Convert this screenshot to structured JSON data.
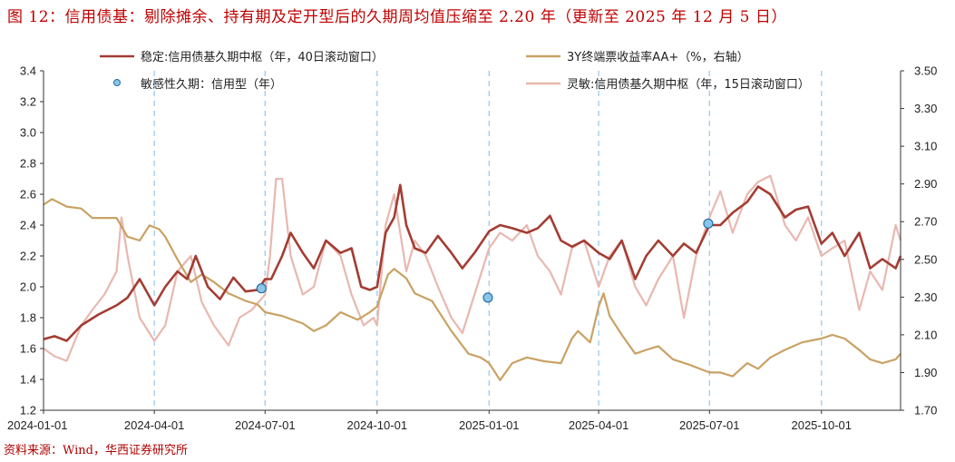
{
  "header": {
    "title": "图 12：信用债基：剔除摊余、持有期及定开型后的久期周均值压缩至 2.20 年（更新至 2025 年 12 月 5 日）"
  },
  "footer": {
    "source": "资料来源：Wind，华西证券研究所"
  },
  "chart_data": {
    "type": "line",
    "title": "",
    "x_ticks": [
      "2024-01-01",
      "2024-04-01",
      "2024-07-01",
      "2024-10-01",
      "2025-01-01",
      "2025-04-01",
      "2025-07-01",
      "2025-10-01"
    ],
    "x_range": [
      "2024-01-01",
      "2025-12-05"
    ],
    "y_left": {
      "min": 1.2,
      "max": 3.4,
      "ticks": [
        "1.2",
        "1.4",
        "1.6",
        "1.8",
        "2.0",
        "2.2",
        "2.4",
        "2.6",
        "2.8",
        "3.0",
        "3.2",
        "3.4"
      ]
    },
    "y_right": {
      "min": 1.7,
      "max": 3.5,
      "ticks": [
        "1.70",
        "1.90",
        "2.10",
        "2.30",
        "2.50",
        "2.70",
        "2.90",
        "3.10",
        "3.30",
        "3.50"
      ]
    },
    "vertical_markers": [
      "2024-04-01",
      "2024-07-01",
      "2024-10-01",
      "2025-01-01",
      "2025-04-01",
      "2025-07-01",
      "2025-10-01"
    ],
    "legend": {
      "stable": "稳定:信用债基久期中枢（年，40日滚动窗口）",
      "yield": "3Y终端票收益率AA+（%，右轴）",
      "points": "敏感性久期：信用型（年）",
      "flexible": "灵敏:信用债基久期中枢（年，15日滚动窗口）"
    },
    "series": [
      {
        "key": "stable",
        "axis": "left",
        "color": "#a33d33",
        "points": [
          [
            "2024-01-01",
            1.66
          ],
          [
            "2024-01-10",
            1.68
          ],
          [
            "2024-01-20",
            1.65
          ],
          [
            "2024-02-01",
            1.75
          ],
          [
            "2024-02-15",
            1.82
          ],
          [
            "2024-03-01",
            1.88
          ],
          [
            "2024-03-10",
            1.93
          ],
          [
            "2024-03-20",
            2.05
          ],
          [
            "2024-04-01",
            1.88
          ],
          [
            "2024-04-10",
            2.0
          ],
          [
            "2024-04-20",
            2.1
          ],
          [
            "2024-04-28",
            2.05
          ],
          [
            "2024-05-05",
            2.2
          ],
          [
            "2024-05-15",
            2.0
          ],
          [
            "2024-05-25",
            1.92
          ],
          [
            "2024-06-05",
            2.06
          ],
          [
            "2024-06-15",
            1.97
          ],
          [
            "2024-06-25",
            1.98
          ],
          [
            "2024-07-01",
            2.05
          ],
          [
            "2024-07-06",
            2.05
          ],
          [
            "2024-07-15",
            2.2
          ],
          [
            "2024-07-22",
            2.35
          ],
          [
            "2024-08-01",
            2.22
          ],
          [
            "2024-08-10",
            2.12
          ],
          [
            "2024-08-20",
            2.3
          ],
          [
            "2024-09-01",
            2.22
          ],
          [
            "2024-09-10",
            2.25
          ],
          [
            "2024-09-18",
            2.0
          ],
          [
            "2024-09-25",
            1.98
          ],
          [
            "2024-10-01",
            2.0
          ],
          [
            "2024-10-08",
            2.35
          ],
          [
            "2024-10-15",
            2.45
          ],
          [
            "2024-10-20",
            2.66
          ],
          [
            "2024-10-25",
            2.4
          ],
          [
            "2024-11-01",
            2.25
          ],
          [
            "2024-11-10",
            2.22
          ],
          [
            "2024-11-20",
            2.33
          ],
          [
            "2024-12-01",
            2.22
          ],
          [
            "2024-12-10",
            2.12
          ],
          [
            "2024-12-20",
            2.22
          ],
          [
            "2025-01-01",
            2.36
          ],
          [
            "2025-01-10",
            2.4
          ],
          [
            "2025-01-20",
            2.38
          ],
          [
            "2025-02-01",
            2.35
          ],
          [
            "2025-02-10",
            2.38
          ],
          [
            "2025-02-20",
            2.46
          ],
          [
            "2025-03-01",
            2.3
          ],
          [
            "2025-03-10",
            2.26
          ],
          [
            "2025-03-20",
            2.3
          ],
          [
            "2025-04-01",
            2.22
          ],
          [
            "2025-04-10",
            2.18
          ],
          [
            "2025-04-20",
            2.3
          ],
          [
            "2025-05-01",
            2.05
          ],
          [
            "2025-05-10",
            2.2
          ],
          [
            "2025-05-20",
            2.3
          ],
          [
            "2025-06-01",
            2.2
          ],
          [
            "2025-06-10",
            2.28
          ],
          [
            "2025-06-20",
            2.22
          ],
          [
            "2025-07-01",
            2.4
          ],
          [
            "2025-07-10",
            2.4
          ],
          [
            "2025-07-20",
            2.48
          ],
          [
            "2025-08-01",
            2.55
          ],
          [
            "2025-08-10",
            2.65
          ],
          [
            "2025-08-20",
            2.6
          ],
          [
            "2025-09-01",
            2.45
          ],
          [
            "2025-09-10",
            2.5
          ],
          [
            "2025-09-20",
            2.52
          ],
          [
            "2025-10-01",
            2.28
          ],
          [
            "2025-10-10",
            2.35
          ],
          [
            "2025-10-20",
            2.2
          ],
          [
            "2025-11-01",
            2.35
          ],
          [
            "2025-11-10",
            2.12
          ],
          [
            "2025-11-20",
            2.18
          ],
          [
            "2025-12-01",
            2.12
          ],
          [
            "2025-12-05",
            2.2
          ]
        ]
      },
      {
        "key": "yield",
        "axis": "right",
        "color": "#c9a264",
        "points": [
          [
            "2024-01-01",
            2.79
          ],
          [
            "2024-01-08",
            2.82
          ],
          [
            "2024-01-20",
            2.78
          ],
          [
            "2024-02-01",
            2.77
          ],
          [
            "2024-02-10",
            2.72
          ],
          [
            "2024-02-20",
            2.72
          ],
          [
            "2024-03-01",
            2.72
          ],
          [
            "2024-03-10",
            2.62
          ],
          [
            "2024-03-20",
            2.6
          ],
          [
            "2024-03-28",
            2.68
          ],
          [
            "2024-04-05",
            2.66
          ],
          [
            "2024-04-10",
            2.62
          ],
          [
            "2024-04-20",
            2.5
          ],
          [
            "2024-05-01",
            2.38
          ],
          [
            "2024-05-10",
            2.42
          ],
          [
            "2024-05-20",
            2.38
          ],
          [
            "2024-06-01",
            2.32
          ],
          [
            "2024-06-15",
            2.28
          ],
          [
            "2024-06-25",
            2.26
          ],
          [
            "2024-07-01",
            2.22
          ],
          [
            "2024-07-15",
            2.2
          ],
          [
            "2024-08-01",
            2.16
          ],
          [
            "2024-08-10",
            2.12
          ],
          [
            "2024-08-20",
            2.15
          ],
          [
            "2024-09-01",
            2.22
          ],
          [
            "2024-09-15",
            2.18
          ],
          [
            "2024-09-25",
            2.22
          ],
          [
            "2024-10-01",
            2.25
          ],
          [
            "2024-10-10",
            2.42
          ],
          [
            "2024-10-15",
            2.45
          ],
          [
            "2024-10-25",
            2.4
          ],
          [
            "2024-11-01",
            2.32
          ],
          [
            "2024-11-15",
            2.28
          ],
          [
            "2024-12-01",
            2.12
          ],
          [
            "2024-12-15",
            2.0
          ],
          [
            "2024-12-25",
            1.98
          ],
          [
            "2025-01-01",
            1.95
          ],
          [
            "2025-01-10",
            1.86
          ],
          [
            "2025-01-20",
            1.95
          ],
          [
            "2025-02-01",
            1.98
          ],
          [
            "2025-02-15",
            1.96
          ],
          [
            "2025-03-01",
            1.95
          ],
          [
            "2025-03-10",
            2.08
          ],
          [
            "2025-03-15",
            2.12
          ],
          [
            "2025-03-25",
            2.06
          ],
          [
            "2025-04-01",
            2.25
          ],
          [
            "2025-04-05",
            2.32
          ],
          [
            "2025-04-10",
            2.2
          ],
          [
            "2025-04-20",
            2.1
          ],
          [
            "2025-05-01",
            2.0
          ],
          [
            "2025-05-10",
            2.02
          ],
          [
            "2025-05-20",
            2.04
          ],
          [
            "2025-06-01",
            1.97
          ],
          [
            "2025-06-15",
            1.94
          ],
          [
            "2025-07-01",
            1.9
          ],
          [
            "2025-07-10",
            1.9
          ],
          [
            "2025-07-20",
            1.88
          ],
          [
            "2025-08-01",
            1.95
          ],
          [
            "2025-08-10",
            1.92
          ],
          [
            "2025-08-20",
            1.98
          ],
          [
            "2025-09-01",
            2.02
          ],
          [
            "2025-09-15",
            2.06
          ],
          [
            "2025-10-01",
            2.08
          ],
          [
            "2025-10-10",
            2.1
          ],
          [
            "2025-10-20",
            2.08
          ],
          [
            "2025-11-01",
            2.02
          ],
          [
            "2025-11-10",
            1.97
          ],
          [
            "2025-11-20",
            1.95
          ],
          [
            "2025-12-01",
            1.97
          ],
          [
            "2025-12-05",
            2.0
          ]
        ]
      },
      {
        "key": "flexible",
        "axis": "left",
        "color": "#e8b8b0",
        "points": [
          [
            "2024-01-01",
            1.6
          ],
          [
            "2024-01-10",
            1.55
          ],
          [
            "2024-01-20",
            1.52
          ],
          [
            "2024-02-01",
            1.75
          ],
          [
            "2024-02-10",
            1.85
          ],
          [
            "2024-02-20",
            1.95
          ],
          [
            "2024-03-01",
            2.1
          ],
          [
            "2024-03-05",
            2.45
          ],
          [
            "2024-03-10",
            2.2
          ],
          [
            "2024-03-20",
            1.8
          ],
          [
            "2024-04-01",
            1.65
          ],
          [
            "2024-04-10",
            1.75
          ],
          [
            "2024-04-20",
            2.1
          ],
          [
            "2024-05-01",
            2.2
          ],
          [
            "2024-05-10",
            1.9
          ],
          [
            "2024-05-20",
            1.75
          ],
          [
            "2024-06-01",
            1.62
          ],
          [
            "2024-06-10",
            1.8
          ],
          [
            "2024-06-20",
            1.85
          ],
          [
            "2024-07-01",
            1.95
          ],
          [
            "2024-07-05",
            2.2
          ],
          [
            "2024-07-10",
            2.7
          ],
          [
            "2024-07-15",
            2.7
          ],
          [
            "2024-07-22",
            2.2
          ],
          [
            "2024-08-01",
            1.95
          ],
          [
            "2024-08-10",
            2.0
          ],
          [
            "2024-08-20",
            2.3
          ],
          [
            "2024-09-01",
            2.2
          ],
          [
            "2024-09-10",
            1.95
          ],
          [
            "2024-09-20",
            1.75
          ],
          [
            "2024-09-28",
            1.8
          ],
          [
            "2024-10-01",
            1.75
          ],
          [
            "2024-10-08",
            2.4
          ],
          [
            "2024-10-15",
            2.6
          ],
          [
            "2024-10-25",
            2.1
          ],
          [
            "2024-11-01",
            2.3
          ],
          [
            "2024-11-10",
            2.2
          ],
          [
            "2024-11-20",
            2.0
          ],
          [
            "2024-12-01",
            1.8
          ],
          [
            "2024-12-10",
            1.7
          ],
          [
            "2024-12-20",
            1.95
          ],
          [
            "2025-01-01",
            2.25
          ],
          [
            "2025-01-10",
            2.35
          ],
          [
            "2025-01-20",
            2.3
          ],
          [
            "2025-02-01",
            2.4
          ],
          [
            "2025-02-10",
            2.2
          ],
          [
            "2025-02-20",
            2.1
          ],
          [
            "2025-03-01",
            1.95
          ],
          [
            "2025-03-10",
            2.25
          ],
          [
            "2025-03-20",
            2.3
          ],
          [
            "2025-04-01",
            2.0
          ],
          [
            "2025-04-10",
            2.2
          ],
          [
            "2025-04-20",
            2.3
          ],
          [
            "2025-05-01",
            2.0
          ],
          [
            "2025-05-10",
            1.88
          ],
          [
            "2025-05-20",
            2.05
          ],
          [
            "2025-06-01",
            2.2
          ],
          [
            "2025-06-10",
            1.8
          ],
          [
            "2025-06-20",
            2.2
          ],
          [
            "2025-07-01",
            2.45
          ],
          [
            "2025-07-10",
            2.62
          ],
          [
            "2025-07-20",
            2.35
          ],
          [
            "2025-08-01",
            2.6
          ],
          [
            "2025-08-10",
            2.68
          ],
          [
            "2025-08-20",
            2.72
          ],
          [
            "2025-09-01",
            2.4
          ],
          [
            "2025-09-10",
            2.3
          ],
          [
            "2025-09-20",
            2.45
          ],
          [
            "2025-10-01",
            2.2
          ],
          [
            "2025-10-10",
            2.25
          ],
          [
            "2025-10-20",
            2.3
          ],
          [
            "2025-11-01",
            1.85
          ],
          [
            "2025-11-10",
            2.1
          ],
          [
            "2025-11-20",
            1.98
          ],
          [
            "2025-12-01",
            2.4
          ],
          [
            "2025-12-05",
            2.3
          ]
        ]
      }
    ],
    "scatter": {
      "key": "points",
      "axis": "left",
      "fill": "#89c6e8",
      "stroke": "#2a6fa8",
      "points": [
        [
          "2024-06-28",
          1.99
        ],
        [
          "2024-12-31",
          1.93
        ],
        [
          "2025-06-30",
          2.41
        ]
      ]
    }
  }
}
